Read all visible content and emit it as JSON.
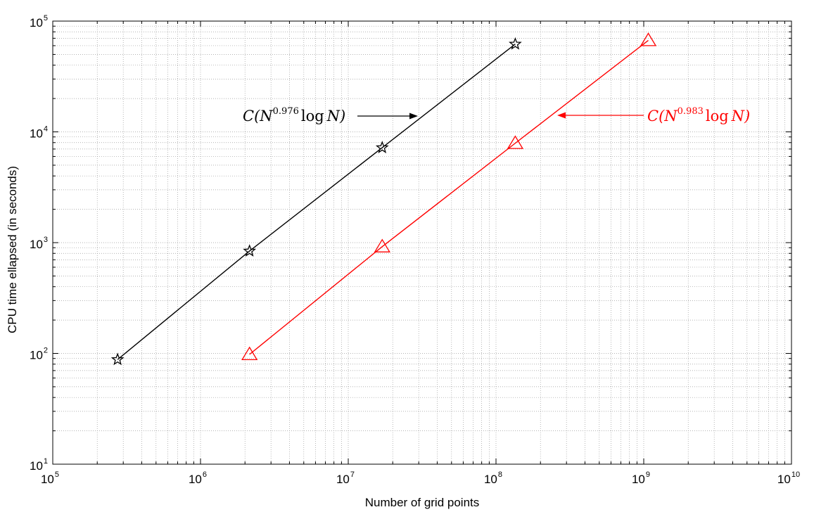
{
  "chart_data": {
    "type": "line",
    "xscale": "log",
    "yscale": "log",
    "xlim": [
      100000,
      10000000000
    ],
    "ylim": [
      10,
      100000
    ],
    "grid": true,
    "xlabel": "Number of grid points",
    "ylabel": "CPU time ellapsed (in seconds)",
    "x_ticks": [
      {
        "base": "10",
        "exp": "5"
      },
      {
        "base": "10",
        "exp": "6"
      },
      {
        "base": "10",
        "exp": "7"
      },
      {
        "base": "10",
        "exp": "8"
      },
      {
        "base": "10",
        "exp": "9"
      },
      {
        "base": "10",
        "exp": "10"
      }
    ],
    "y_ticks": [
      {
        "base": "10",
        "exp": "1"
      },
      {
        "base": "10",
        "exp": "2"
      },
      {
        "base": "10",
        "exp": "3"
      },
      {
        "base": "10",
        "exp": "4"
      },
      {
        "base": "10",
        "exp": "5"
      }
    ],
    "series": [
      {
        "marker": "star",
        "color": "#000000",
        "x": [
          274625,
          2146689,
          16974593,
          135005697
        ],
        "y": [
          88,
          840,
          7200,
          62000
        ]
      },
      {
        "marker": "triangle",
        "color": "#ff0000",
        "x": [
          2146689,
          16974593,
          135005697,
          1073741824
        ],
        "y": [
          98,
          920,
          7900,
          67000
        ]
      }
    ],
    "annotations": [
      {
        "text_pre": "C(N",
        "superscript": "0.976",
        "text_log": "log",
        "text_post": "N)",
        "color": "#000000",
        "arrow_direction": "right"
      },
      {
        "text_pre": "C(N",
        "superscript": "0.983",
        "text_log": "log",
        "text_post": "N)",
        "color": "#ff0000",
        "arrow_direction": "left"
      }
    ]
  }
}
